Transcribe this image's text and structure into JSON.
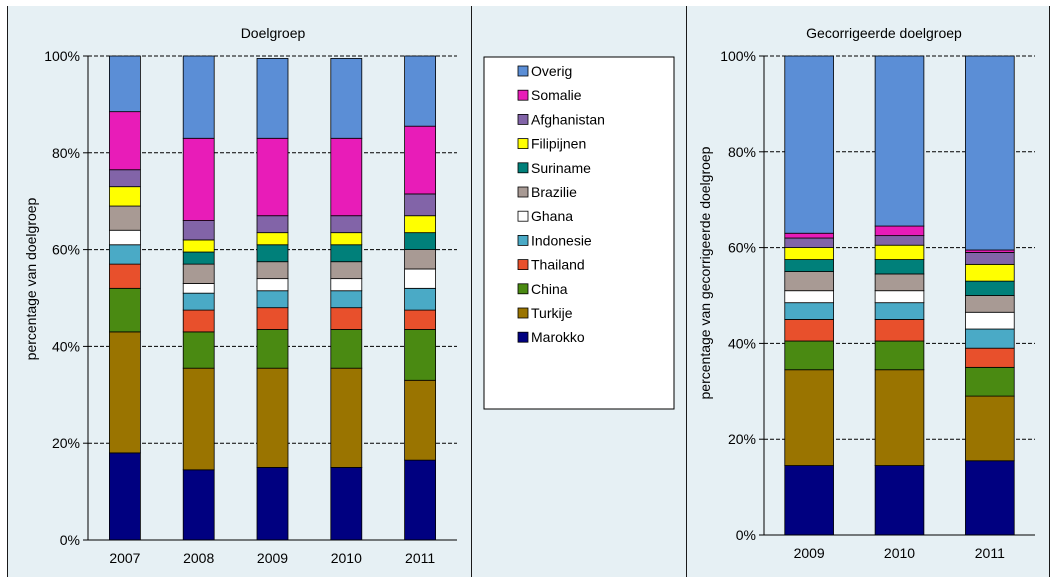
{
  "legend": {
    "entries": [
      {
        "label": "Overig",
        "color": "#5b8ed6"
      },
      {
        "label": "Somalie",
        "color": "#e81cb8"
      },
      {
        "label": "Afghanistan",
        "color": "#8264a8"
      },
      {
        "label": "Filipijnen",
        "color": "#ffff00"
      },
      {
        "label": "Suriname",
        "color": "#00807a"
      },
      {
        "label": "Brazilie",
        "color": "#a89a94"
      },
      {
        "label": "Ghana",
        "color": "#ffffff"
      },
      {
        "label": "Indonesie",
        "color": "#4aaac6"
      },
      {
        "label": "Thailand",
        "color": "#e8502c"
      },
      {
        "label": "China",
        "color": "#4a8a12"
      },
      {
        "label": "Turkije",
        "color": "#9a7400"
      },
      {
        "label": "Marokko",
        "color": "#000080"
      }
    ]
  },
  "chart_data": [
    {
      "type": "bar",
      "stacked": true,
      "title": "Doelgroep",
      "xlabel": "",
      "ylabel": "percentage van doelgroep",
      "ylim": [
        0,
        100
      ],
      "yticks": [
        "0%",
        "20%",
        "40%",
        "60%",
        "80%",
        "100%"
      ],
      "categories": [
        "2007",
        "2008",
        "2009",
        "2010",
        "2011"
      ],
      "grid": true,
      "series": [
        {
          "name": "Marokko",
          "values": [
            18,
            14.5,
            15,
            15,
            16.5
          ]
        },
        {
          "name": "Turkije",
          "values": [
            25,
            21,
            20.5,
            20.5,
            16.5
          ]
        },
        {
          "name": "China",
          "values": [
            9,
            7.5,
            8,
            8,
            10.5
          ]
        },
        {
          "name": "Thailand",
          "values": [
            5,
            4.5,
            4.5,
            4.5,
            4
          ]
        },
        {
          "name": "Indonesie",
          "values": [
            4,
            3.5,
            3.5,
            3.5,
            4.5
          ]
        },
        {
          "name": "Ghana",
          "values": [
            3,
            2,
            2.5,
            2.5,
            4
          ]
        },
        {
          "name": "Brazilie",
          "values": [
            5,
            4,
            3.5,
            3.5,
            4
          ]
        },
        {
          "name": "Suriname",
          "values": [
            0,
            2.5,
            3.5,
            3.5,
            3.5
          ]
        },
        {
          "name": "Filipijnen",
          "values": [
            4,
            2.5,
            2.5,
            2.5,
            3.5
          ]
        },
        {
          "name": "Afghanistan",
          "values": [
            3.5,
            4,
            3.5,
            3.5,
            4.5
          ]
        },
        {
          "name": "Somalie",
          "values": [
            12,
            17,
            16,
            16,
            14
          ]
        },
        {
          "name": "Overig",
          "values": [
            11.5,
            17,
            16.5,
            16.5,
            14.5
          ]
        }
      ]
    },
    {
      "type": "bar",
      "stacked": true,
      "title": "Gecorrigeerde doelgroep",
      "xlabel": "",
      "ylabel": "percentage van gecorrigeerde doelgroep",
      "ylim": [
        0,
        100
      ],
      "yticks": [
        "0%",
        "20%",
        "40%",
        "60%",
        "80%",
        "100%"
      ],
      "categories": [
        "2009",
        "2010",
        "2011"
      ],
      "grid": true,
      "series": [
        {
          "name": "Marokko",
          "values": [
            14.5,
            14.5,
            15.5
          ]
        },
        {
          "name": "Turkije",
          "values": [
            20,
            20,
            13.5
          ]
        },
        {
          "name": "China",
          "values": [
            6,
            6,
            6
          ]
        },
        {
          "name": "Thailand",
          "values": [
            4.5,
            4.5,
            4
          ]
        },
        {
          "name": "Indonesie",
          "values": [
            3.5,
            3.5,
            4
          ]
        },
        {
          "name": "Ghana",
          "values": [
            2.5,
            2.5,
            3.5
          ]
        },
        {
          "name": "Brazilie",
          "values": [
            4,
            3.5,
            3.5
          ]
        },
        {
          "name": "Suriname",
          "values": [
            2.5,
            3,
            3
          ]
        },
        {
          "name": "Filipijnen",
          "values": [
            2.5,
            3,
            3.5
          ]
        },
        {
          "name": "Afghanistan",
          "values": [
            2,
            2,
            2.5
          ]
        },
        {
          "name": "Somalie",
          "values": [
            1,
            2,
            0.5
          ]
        },
        {
          "name": "Overig",
          "values": [
            37,
            35.5,
            40.5
          ]
        }
      ]
    }
  ]
}
